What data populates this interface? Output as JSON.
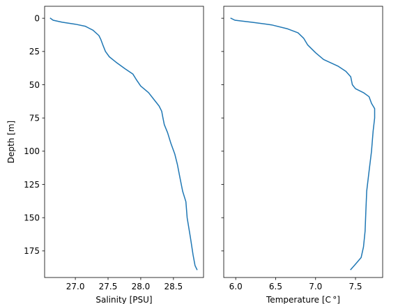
{
  "chart_data": [
    {
      "type": "line",
      "xlabel": "Salinity [PSU]",
      "ylabel": "Depth [m]",
      "xlim": [
        26.53,
        28.96
      ],
      "ylim": [
        195,
        -9
      ],
      "y_inverted": true,
      "xticks": [
        27.0,
        27.5,
        28.0,
        28.5
      ],
      "xtick_labels": [
        "27.0",
        "27.5",
        "28.0",
        "28.5"
      ],
      "yticks": [
        0,
        25,
        50,
        75,
        100,
        125,
        150,
        175
      ],
      "ytick_labels": [
        "0",
        "25",
        "50",
        "75",
        "100",
        "125",
        "150",
        "175"
      ],
      "color": "#1f77b4",
      "series": [
        {
          "points": [
            [
              26.62,
              0
            ],
            [
              26.66,
              1.5
            ],
            [
              26.8,
              3
            ],
            [
              27.0,
              4.5
            ],
            [
              27.15,
              6
            ],
            [
              27.27,
              9
            ],
            [
              27.36,
              13
            ],
            [
              27.39,
              16
            ],
            [
              27.42,
              20
            ],
            [
              27.46,
              25
            ],
            [
              27.52,
              29
            ],
            [
              27.62,
              33
            ],
            [
              27.76,
              38
            ],
            [
              27.88,
              42
            ],
            [
              27.93,
              46
            ],
            [
              28.0,
              51
            ],
            [
              28.12,
              56
            ],
            [
              28.2,
              61
            ],
            [
              28.28,
              66
            ],
            [
              28.32,
              70
            ],
            [
              28.34,
              75
            ],
            [
              28.36,
              80
            ],
            [
              28.41,
              86
            ],
            [
              28.46,
              94
            ],
            [
              28.52,
              102
            ],
            [
              28.56,
              110
            ],
            [
              28.6,
              120
            ],
            [
              28.64,
              130
            ],
            [
              28.69,
              138
            ],
            [
              28.71,
              150
            ],
            [
              28.76,
              165
            ],
            [
              28.8,
              178
            ],
            [
              28.83,
              186
            ],
            [
              28.86,
              189
            ]
          ]
        }
      ]
    },
    {
      "type": "line",
      "xlabel": "Temperature [C$^\\circ$]",
      "xlabel_display": "Temperature [C °]",
      "xlim": [
        5.85,
        7.84
      ],
      "ylim": [
        195,
        -9
      ],
      "y_inverted": true,
      "y_shared": true,
      "xticks": [
        6.0,
        6.5,
        7.0,
        7.5
      ],
      "xtick_labels": [
        "6.0",
        "6.5",
        "7.0",
        "7.5"
      ],
      "color": "#1f77b4",
      "series": [
        {
          "points": [
            [
              5.94,
              0
            ],
            [
              5.99,
              1.5
            ],
            [
              6.2,
              3
            ],
            [
              6.45,
              5
            ],
            [
              6.65,
              8
            ],
            [
              6.78,
              11
            ],
            [
              6.85,
              15
            ],
            [
              6.9,
              20
            ],
            [
              7.0,
              26
            ],
            [
              7.1,
              31
            ],
            [
              7.28,
              36
            ],
            [
              7.38,
              40
            ],
            [
              7.44,
              44
            ],
            [
              7.46,
              50
            ],
            [
              7.5,
              53
            ],
            [
              7.6,
              56
            ],
            [
              7.67,
              59
            ],
            [
              7.7,
              64
            ],
            [
              7.74,
              68
            ],
            [
              7.74,
              75
            ],
            [
              7.72,
              85
            ],
            [
              7.7,
              100
            ],
            [
              7.67,
              115
            ],
            [
              7.64,
              130
            ],
            [
              7.63,
              145
            ],
            [
              7.62,
              160
            ],
            [
              7.6,
              172
            ],
            [
              7.57,
              180
            ],
            [
              7.5,
              185
            ],
            [
              7.44,
              189
            ]
          ]
        }
      ]
    }
  ]
}
